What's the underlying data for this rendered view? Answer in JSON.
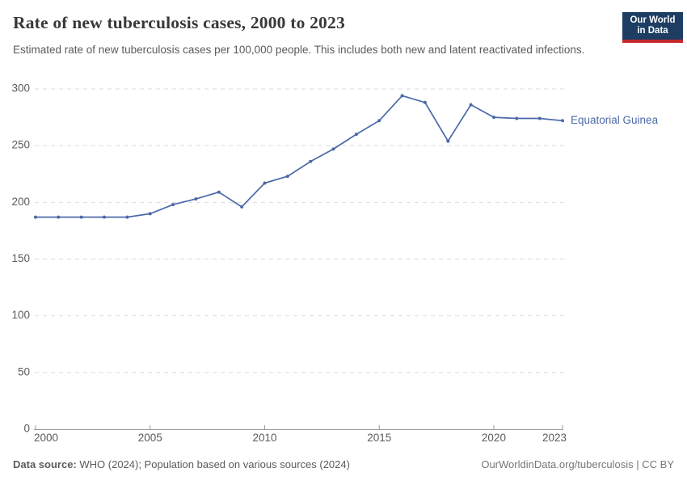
{
  "header": {
    "title": "Rate of new tuberculosis cases, 2000 to 2023",
    "subtitle": "Estimated rate of new tuberculosis cases per 100,000 people. This includes both new and latent reactivated infections.",
    "logo_line1": "Our World",
    "logo_line2": "in Data"
  },
  "chart_data": {
    "type": "line",
    "title": "Rate of new tuberculosis cases, 2000 to 2023",
    "x": [
      2000,
      2001,
      2002,
      2003,
      2004,
      2005,
      2006,
      2007,
      2008,
      2009,
      2010,
      2011,
      2012,
      2013,
      2014,
      2015,
      2016,
      2017,
      2018,
      2019,
      2020,
      2021,
      2022,
      2023
    ],
    "series": [
      {
        "name": "Equatorial Guinea",
        "color": "#4b69a8",
        "values": [
          187,
          187,
          187,
          187,
          187,
          190,
          198,
          203,
          209,
          196,
          217,
          223,
          236,
          247,
          260,
          272,
          294,
          288,
          254,
          286,
          275,
          274,
          274,
          272
        ]
      }
    ],
    "xlabel": "",
    "ylabel": "",
    "ylim": [
      0,
      300
    ],
    "yticks": [
      0,
      50,
      100,
      150,
      200,
      250,
      300
    ],
    "xticks": [
      2000,
      2005,
      2010,
      2015,
      2020,
      2023
    ],
    "grid": "horizontal-dashed",
    "legend_position": "right-of-line-end"
  },
  "footer": {
    "source_label": "Data source:",
    "source_text": "WHO (2024); Population based on various sources (2024)",
    "attribution": "OurWorldinData.org/tuberculosis | CC BY"
  },
  "colors": {
    "series_blue": "#4b69a8",
    "grid": "#dcdcdc",
    "axis": "#999999",
    "tick_text": "#5b5b5b",
    "title_text": "#383838",
    "subtitle_text": "#5b5b5b",
    "logo_bg": "#1d3d63",
    "logo_stripe": "#c5292a"
  }
}
